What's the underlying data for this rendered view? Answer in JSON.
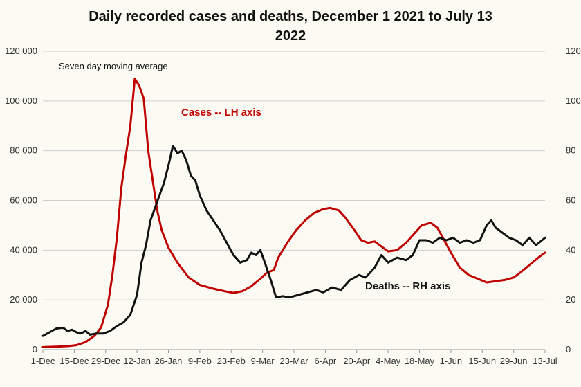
{
  "chart_data": {
    "type": "line",
    "title_line1": "Daily recorded cases and deaths,  December 1 2021 to July 13",
    "title_line2": "2022",
    "annotation": "Seven day moving average",
    "x_ticks": [
      "1-Dec",
      "15-Dec",
      "29-Dec",
      "12-Jan",
      "26-Jan",
      "9-Feb",
      "23-Feb",
      "9-Mar",
      "23-Mar",
      "6-Apr",
      "20-Apr",
      "4-May",
      "18-May",
      "1-Jun",
      "15-Jun",
      "29-Jun",
      "13-Jul"
    ],
    "x_range": [
      "2021-12-01",
      "2022-07-13"
    ],
    "y_left": {
      "range": [
        0,
        120000
      ],
      "ticks": [
        "0",
        "20 000",
        "40 000",
        "60 000",
        "80 000",
        "100 000",
        "120 000"
      ]
    },
    "y_right": {
      "range": [
        0,
        120
      ],
      "ticks": [
        "0",
        "20",
        "40",
        "60",
        "80",
        "100",
        "120"
      ]
    },
    "grid": true,
    "colors": {
      "cases": "#c00000",
      "deaths": "#111111",
      "grid": "#cfcfcf"
    },
    "series": [
      {
        "name": "Cases -- LH axis",
        "axis": "left",
        "points": [
          [
            "2021-12-01",
            1000
          ],
          [
            "2021-12-07",
            1200
          ],
          [
            "2021-12-12",
            1400
          ],
          [
            "2021-12-16",
            1800
          ],
          [
            "2021-12-20",
            3000
          ],
          [
            "2021-12-24",
            5500
          ],
          [
            "2021-12-27",
            9000
          ],
          [
            "2021-12-30",
            18000
          ],
          [
            "2022-01-01",
            30000
          ],
          [
            "2022-01-03",
            45000
          ],
          [
            "2022-01-05",
            65000
          ],
          [
            "2022-01-07",
            78000
          ],
          [
            "2022-01-09",
            90000
          ],
          [
            "2022-01-11",
            109000
          ],
          [
            "2022-01-13",
            106000
          ],
          [
            "2022-01-15",
            101000
          ],
          [
            "2022-01-17",
            80000
          ],
          [
            "2022-01-19",
            68000
          ],
          [
            "2022-01-21",
            56000
          ],
          [
            "2022-01-23",
            48000
          ],
          [
            "2022-01-26",
            41000
          ],
          [
            "2022-01-30",
            35000
          ],
          [
            "2022-02-04",
            29000
          ],
          [
            "2022-02-09",
            26000
          ],
          [
            "2022-02-15",
            24500
          ],
          [
            "2022-02-20",
            23500
          ],
          [
            "2022-02-24",
            22800
          ],
          [
            "2022-02-28",
            23500
          ],
          [
            "2022-03-04",
            25500
          ],
          [
            "2022-03-08",
            28500
          ],
          [
            "2022-03-11",
            31000
          ],
          [
            "2022-03-14",
            32000
          ],
          [
            "2022-03-16",
            37000
          ],
          [
            "2022-03-20",
            43000
          ],
          [
            "2022-03-24",
            48000
          ],
          [
            "2022-03-28",
            52000
          ],
          [
            "2022-04-01",
            55000
          ],
          [
            "2022-04-05",
            56500
          ],
          [
            "2022-04-08",
            57000
          ],
          [
            "2022-04-12",
            56000
          ],
          [
            "2022-04-15",
            53000
          ],
          [
            "2022-04-19",
            48000
          ],
          [
            "2022-04-22",
            44000
          ],
          [
            "2022-04-25",
            43000
          ],
          [
            "2022-04-28",
            43500
          ],
          [
            "2022-05-01",
            41500
          ],
          [
            "2022-05-04",
            39500
          ],
          [
            "2022-05-08",
            40000
          ],
          [
            "2022-05-12",
            43000
          ],
          [
            "2022-05-16",
            47000
          ],
          [
            "2022-05-19",
            50000
          ],
          [
            "2022-05-23",
            51000
          ],
          [
            "2022-05-26",
            49000
          ],
          [
            "2022-05-29",
            44000
          ],
          [
            "2022-06-01",
            39000
          ],
          [
            "2022-06-05",
            33000
          ],
          [
            "2022-06-09",
            30000
          ],
          [
            "2022-06-13",
            28500
          ],
          [
            "2022-06-17",
            27000
          ],
          [
            "2022-06-21",
            27500
          ],
          [
            "2022-06-25",
            28000
          ],
          [
            "2022-06-29",
            29000
          ],
          [
            "2022-07-02",
            31000
          ],
          [
            "2022-07-06",
            34000
          ],
          [
            "2022-07-10",
            37000
          ],
          [
            "2022-07-13",
            39000
          ]
        ]
      },
      {
        "name": "Deaths -- RH axis",
        "axis": "right",
        "points": [
          [
            "2021-12-01",
            5.5
          ],
          [
            "2021-12-04",
            7
          ],
          [
            "2021-12-07",
            8.5
          ],
          [
            "2021-12-10",
            8.8
          ],
          [
            "2021-12-12",
            7.5
          ],
          [
            "2021-12-14",
            8
          ],
          [
            "2021-12-16",
            7
          ],
          [
            "2021-12-18",
            6.5
          ],
          [
            "2021-12-20",
            7.5
          ],
          [
            "2021-12-22",
            6
          ],
          [
            "2021-12-25",
            6.5
          ],
          [
            "2021-12-28",
            6.5
          ],
          [
            "2021-12-31",
            7.5
          ],
          [
            "2022-01-03",
            9.5
          ],
          [
            "2022-01-06",
            11
          ],
          [
            "2022-01-09",
            14
          ],
          [
            "2022-01-12",
            22
          ],
          [
            "2022-01-14",
            35
          ],
          [
            "2022-01-16",
            42
          ],
          [
            "2022-01-18",
            52
          ],
          [
            "2022-01-20",
            57
          ],
          [
            "2022-01-22",
            62
          ],
          [
            "2022-01-24",
            67
          ],
          [
            "2022-01-26",
            74
          ],
          [
            "2022-01-28",
            82
          ],
          [
            "2022-01-30",
            79
          ],
          [
            "2022-02-01",
            80
          ],
          [
            "2022-02-03",
            76
          ],
          [
            "2022-02-05",
            70
          ],
          [
            "2022-02-07",
            68
          ],
          [
            "2022-02-09",
            62
          ],
          [
            "2022-02-12",
            56
          ],
          [
            "2022-02-15",
            52
          ],
          [
            "2022-02-18",
            48
          ],
          [
            "2022-02-21",
            43
          ],
          [
            "2022-02-24",
            38
          ],
          [
            "2022-02-27",
            35
          ],
          [
            "2022-03-02",
            36
          ],
          [
            "2022-03-04",
            39
          ],
          [
            "2022-03-06",
            38
          ],
          [
            "2022-03-08",
            40
          ],
          [
            "2022-03-10",
            35
          ],
          [
            "2022-03-13",
            27
          ],
          [
            "2022-03-15",
            21
          ],
          [
            "2022-03-18",
            21.5
          ],
          [
            "2022-03-21",
            21
          ],
          [
            "2022-03-25",
            22
          ],
          [
            "2022-03-29",
            23
          ],
          [
            "2022-04-02",
            24
          ],
          [
            "2022-04-05",
            23
          ],
          [
            "2022-04-09",
            25
          ],
          [
            "2022-04-13",
            24
          ],
          [
            "2022-04-17",
            28
          ],
          [
            "2022-04-21",
            30
          ],
          [
            "2022-04-24",
            29
          ],
          [
            "2022-04-28",
            33
          ],
          [
            "2022-05-01",
            38
          ],
          [
            "2022-05-04",
            35
          ],
          [
            "2022-05-08",
            37
          ],
          [
            "2022-05-12",
            36
          ],
          [
            "2022-05-15",
            38
          ],
          [
            "2022-05-18",
            44
          ],
          [
            "2022-05-21",
            44
          ],
          [
            "2022-05-24",
            43
          ],
          [
            "2022-05-27",
            45
          ],
          [
            "2022-05-30",
            44
          ],
          [
            "2022-06-02",
            45
          ],
          [
            "2022-06-05",
            43
          ],
          [
            "2022-06-08",
            44
          ],
          [
            "2022-06-11",
            43
          ],
          [
            "2022-06-14",
            44
          ],
          [
            "2022-06-17",
            50
          ],
          [
            "2022-06-19",
            52
          ],
          [
            "2022-06-21",
            49
          ],
          [
            "2022-06-24",
            47
          ],
          [
            "2022-06-27",
            45
          ],
          [
            "2022-06-30",
            44
          ],
          [
            "2022-07-03",
            42
          ],
          [
            "2022-07-06",
            45
          ],
          [
            "2022-07-09",
            42
          ],
          [
            "2022-07-13",
            45
          ]
        ]
      }
    ]
  }
}
